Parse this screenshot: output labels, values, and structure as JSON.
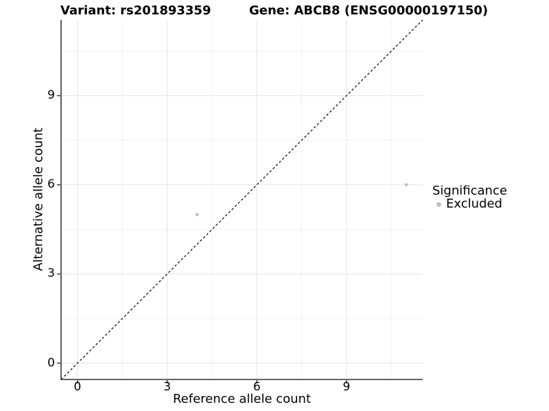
{
  "chart_data": {
    "type": "scatter",
    "title_left": "Variant: rs201893359",
    "title_right": "Gene: ABCB8 (ENSG00000197150)",
    "xlabel": "Reference allele count",
    "ylabel": "Alternative allele count",
    "xlim": [
      -0.55,
      11.55
    ],
    "ylim": [
      -0.55,
      11.55
    ],
    "xticks": [
      0,
      3,
      6,
      9
    ],
    "yticks": [
      0,
      3,
      6,
      9
    ],
    "x_minor": [
      1.5,
      4.5,
      7.5,
      10.5
    ],
    "y_minor": [
      1.5,
      4.5,
      7.5,
      10.5
    ],
    "grid": true,
    "series": [
      {
        "name": "Excluded",
        "color": "#bebebe",
        "points": [
          {
            "x": 4,
            "y": 5
          },
          {
            "x": 11,
            "y": 6
          }
        ]
      }
    ],
    "reference_line": {
      "type": "identity",
      "slope": 1,
      "intercept": 0,
      "style": "dashed",
      "color": "#000000"
    },
    "legend": {
      "title": "Significance",
      "position": "right",
      "items": [
        {
          "label": "Excluded",
          "color": "#bebebe"
        }
      ]
    }
  },
  "colors": {
    "background": "#ffffff",
    "grid_major": "#e3e3e3",
    "grid_minor": "#f1f1f1",
    "axis_line": "#4d4d4d",
    "tick_mark": "#333333",
    "text": "#000000",
    "point": "#bebebe"
  }
}
